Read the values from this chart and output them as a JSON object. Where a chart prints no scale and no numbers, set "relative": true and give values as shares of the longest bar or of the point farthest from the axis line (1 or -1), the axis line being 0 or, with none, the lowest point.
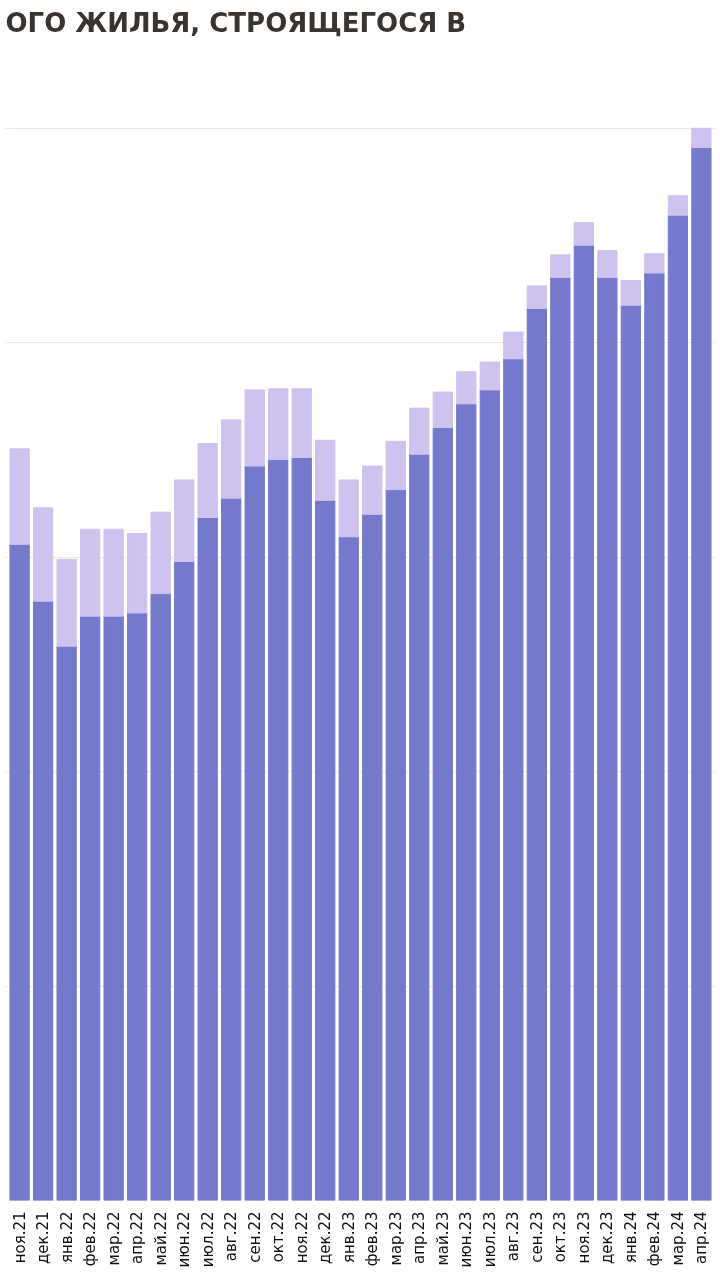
{
  "chart_data": {
    "type": "bar",
    "title": "ОГО ЖИЛЬЯ, СТРОЯЩЕГОСЯ В",
    "relative": true,
    "stacked": true,
    "grid": "y",
    "categories": [
      "ноя.21",
      "дек.21",
      "янв.22",
      "фев.22",
      "мар.22",
      "апр.22",
      "май.22",
      "июн.22",
      "июл.22",
      "авг.22",
      "сен.22",
      "окт.22",
      "ноя.22",
      "дек.22",
      "янв.23",
      "фев.23",
      "мар.23",
      "апр.23",
      "май.23",
      "июн.23",
      "июл.23",
      "авг.23",
      "сен.23",
      "окт.23",
      "ноя.23",
      "дек.23",
      "янв.24",
      "фев.24",
      "мар.24",
      "апр.24"
    ],
    "series": [
      {
        "color": "#7579cc",
        "values": [
          0.612,
          0.559,
          0.517,
          0.545,
          0.545,
          0.548,
          0.566,
          0.596,
          0.637,
          0.655,
          0.685,
          0.691,
          0.693,
          0.653,
          0.619,
          0.64,
          0.663,
          0.696,
          0.721,
          0.743,
          0.756,
          0.785,
          0.832,
          0.861,
          0.891,
          0.861,
          0.835,
          0.865,
          0.919,
          0.982
        ]
      },
      {
        "color": "#cdc3ee",
        "values": [
          0.089,
          0.087,
          0.081,
          0.081,
          0.081,
          0.074,
          0.076,
          0.076,
          0.069,
          0.073,
          0.071,
          0.066,
          0.064,
          0.056,
          0.053,
          0.045,
          0.045,
          0.043,
          0.033,
          0.03,
          0.026,
          0.025,
          0.021,
          0.021,
          0.021,
          0.025,
          0.023,
          0.018,
          0.018,
          0.018
        ]
      }
    ]
  }
}
